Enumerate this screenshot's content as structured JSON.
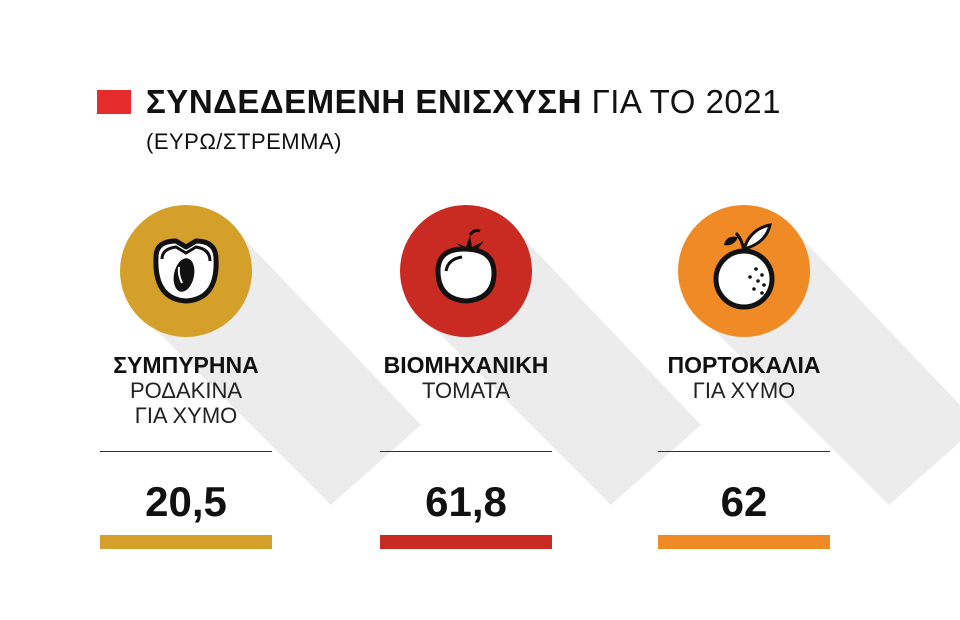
{
  "title": {
    "bold": "ΣΥΝΔΕΔΕΜΕΝΗ ΕΝΙΣΧΥΣΗ",
    "light": "ΓΙΑ ΤΟ 2021",
    "subtitle": "(ΕΥΡΩ/ΣΤΡΕΜΜΑ)",
    "marker_color": "#e52b2b"
  },
  "chart_data": {
    "type": "table",
    "title": "ΣΥΝΔΕΔΕΜΕΝΗ ΕΝΙΣΧΥΣΗ ΓΙΑ ΤΟ 2021",
    "subtitle": "(ΕΥΡΩ/ΣΤΡΕΜΜΑ)",
    "categories": [
      "ΣΥΜΠΥΡΗΝΑ ΡΟΔΑΚΙΝΑ ΓΙΑ ΧΥΜΟ",
      "ΒΙΟΜΗΧΑΝΙΚΗ ΤΟΜΑΤΑ",
      "ΠΟΡΤΟΚΑΛΙΑ ΓΙΑ ΧΥΜΟ"
    ],
    "values": [
      20.5,
      61.8,
      62
    ]
  },
  "items": [
    {
      "icon": "peach-icon",
      "label_bold": "ΣΥΜΠΥΡΗΝΑ",
      "label_line2": "ΡΟΔΑΚΙΝΑ",
      "label_line3": "ΓΙΑ ΧΥΜΟ",
      "value": "20,5",
      "color": "#d4a02a"
    },
    {
      "icon": "tomato-icon",
      "label_bold": "ΒΙΟΜΗΧΑΝΙΚΗ",
      "label_line2": "ΤΟΜΑΤΑ",
      "label_line3": "",
      "value": "61,8",
      "color": "#c92a22"
    },
    {
      "icon": "orange-icon",
      "label_bold": "ΠΟΡΤΟΚΑΛΙΑ",
      "label_line2": "ΓΙΑ ΧΥΜΟ",
      "label_line3": "",
      "value": "62",
      "color": "#ef8a25"
    }
  ]
}
